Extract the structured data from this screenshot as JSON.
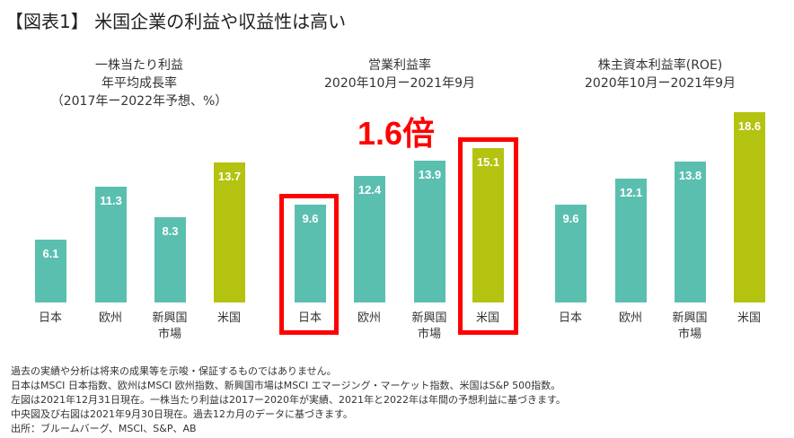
{
  "title": "【図表1】 米国企業の利益や収益性は高い",
  "highlight": {
    "text": "1.6倍",
    "color": "#ff0000"
  },
  "colors": {
    "other": "#5bbfb0",
    "us": "#b3c30f"
  },
  "chart_data": [
    {
      "type": "bar",
      "title_lines": [
        "一株当たり利益",
        "年平均成長率",
        "（2017年ー2022年予想、%）"
      ],
      "categories": [
        "日本",
        "欧州",
        "新興国\n市場",
        "米国"
      ],
      "values": [
        6.1,
        11.3,
        8.3,
        13.7
      ]
    },
    {
      "type": "bar",
      "title_lines": [
        "営業利益率",
        "2020年10月ー2021年9月"
      ],
      "categories": [
        "日本",
        "欧州",
        "新興国\n市場",
        "米国"
      ],
      "values": [
        9.6,
        12.4,
        13.9,
        15.1
      ],
      "highlighted": [
        "日本",
        "米国"
      ]
    },
    {
      "type": "bar",
      "title_lines": [
        "株主資本利益率(ROE)",
        "2020年10月ー2021年9月"
      ],
      "categories": [
        "日本",
        "欧州",
        "新興国\n市場",
        "米国"
      ],
      "values": [
        9.6,
        12.1,
        13.8,
        18.6
      ]
    }
  ],
  "notes": [
    "過去の実績や分析は将来の成果等を示唆・保証するものではありません。",
    "日本はMSCI 日本指数、欧州はMSCI 欧州指数、新興国市場はMSCI エマージング・マーケット指数、米国はS&P 500指数。",
    "左図は2021年12月31日現在。一株当たり利益は2017ー2020年が実績、2021年と2022年は年間の予想利益に基づきます。",
    "中央図及び右図は2021年9月30日現在。過去12カ月のデータに基づきます。",
    "出所：ブルームバーグ、MSCI、S&P、AB"
  ]
}
